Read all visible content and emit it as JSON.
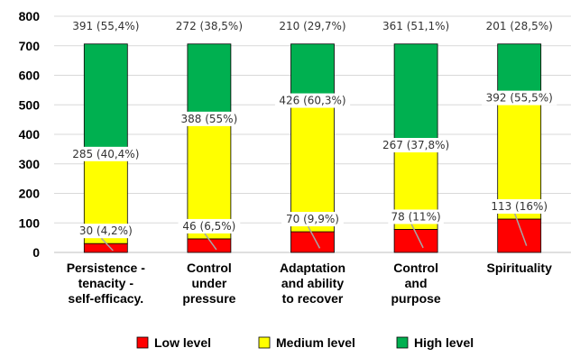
{
  "chart_data": {
    "type": "bar",
    "stacked": true,
    "categories": [
      [
        "Persistence -",
        "tenacity -",
        "self-efficacy."
      ],
      [
        "Control",
        "under",
        "pressure"
      ],
      [
        "Adaptation",
        "and ability",
        "to recover"
      ],
      [
        "Control",
        "and",
        "purpose"
      ],
      [
        "Spirituality"
      ]
    ],
    "series": [
      {
        "name": "Low level",
        "color": "#ff0000",
        "values": [
          30,
          46,
          70,
          78,
          113
        ],
        "labels": [
          "30 (4,2%)",
          "46 (6,5%)",
          "70 (9,9%)",
          "78 (11%)",
          "113 (16%)"
        ]
      },
      {
        "name": "Medium level",
        "color": "#ffff00",
        "values": [
          285,
          388,
          426,
          267,
          392
        ],
        "labels": [
          "285 (40,4%)",
          "388 (55%)",
          "426 (60,3%)",
          "267 (37,8%)",
          "392 (55,5%)"
        ]
      },
      {
        "name": "High level",
        "color": "#00b050",
        "values": [
          391,
          272,
          210,
          361,
          201
        ],
        "labels": [
          "391 (55,4%)",
          "272 (38,5%)",
          "210 (29,7%)",
          "361 (51,1%)",
          "201 (28,5%)"
        ]
      }
    ],
    "yticks": [
      "0",
      "100",
      "200",
      "300",
      "400",
      "500",
      "600",
      "700",
      "800"
    ],
    "ylim": [
      0,
      800
    ],
    "grid": "horizontal",
    "legend_position": "bottom"
  }
}
